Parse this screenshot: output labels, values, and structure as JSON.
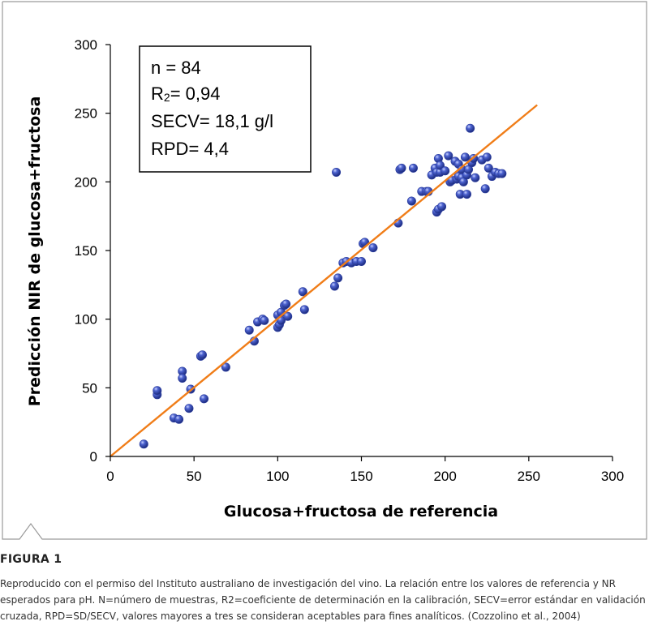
{
  "figure": {
    "label": "FIGURA 1",
    "caption": "Reproducido con el permiso del Instituto australiano de investigación del vino. La relación entre los valores de referencia y NR esperados para pH. N=número de muestras, R2=coeficiente de determinación en la calibración, SECV=error estándar en validación cruzada, RPD=SD/SECV, valores mayores a tres se consideran aceptables para fines analíticos. (Cozzolino et al., 2004)"
  },
  "chart_data": {
    "type": "scatter",
    "xlabel": "Glucosa+fructosa de referencia",
    "ylabel": "Predicción NIR de glucosa+fructosa",
    "xlim": [
      0,
      300
    ],
    "ylim": [
      0,
      300
    ],
    "xticks": [
      "0",
      "50",
      "100",
      "150",
      "200",
      "250",
      "300"
    ],
    "yticks": [
      "0",
      "50",
      "100",
      "150",
      "200",
      "250",
      "300"
    ],
    "grid": false,
    "stats": [
      {
        "prefix": "n = 84",
        "sub": "",
        "suffix": ""
      },
      {
        "prefix": "R",
        "sub": "2",
        "suffix": "= 0,94"
      },
      {
        "prefix": "SECV= 18,1 g/l",
        "sub": "",
        "suffix": ""
      },
      {
        "prefix": "RPD= 4,4",
        "sub": "",
        "suffix": ""
      }
    ],
    "point_color": "#2c3ea0",
    "line_color": "#f07d18",
    "fit_line": {
      "x": [
        0,
        255
      ],
      "y": [
        0,
        256
      ]
    },
    "points": [
      [
        20,
        9
      ],
      [
        28,
        45
      ],
      [
        28,
        48
      ],
      [
        38,
        28
      ],
      [
        41,
        27
      ],
      [
        43,
        62
      ],
      [
        43,
        57
      ],
      [
        47,
        35
      ],
      [
        48,
        49
      ],
      [
        54,
        73
      ],
      [
        55,
        74
      ],
      [
        56,
        42
      ],
      [
        69,
        65
      ],
      [
        83,
        92
      ],
      [
        86,
        84
      ],
      [
        88,
        98
      ],
      [
        91,
        100
      ],
      [
        92,
        99
      ],
      [
        100,
        103
      ],
      [
        100,
        94
      ],
      [
        101,
        96
      ],
      [
        102,
        99
      ],
      [
        102,
        105
      ],
      [
        104,
        110
      ],
      [
        105,
        111
      ],
      [
        106,
        102
      ],
      [
        115,
        120
      ],
      [
        116,
        107
      ],
      [
        134,
        124
      ],
      [
        135,
        207
      ],
      [
        136,
        130
      ],
      [
        139,
        141
      ],
      [
        141,
        142
      ],
      [
        144,
        141
      ],
      [
        147,
        142
      ],
      [
        150,
        142
      ],
      [
        151,
        155
      ],
      [
        152,
        156
      ],
      [
        157,
        152
      ],
      [
        172,
        170
      ],
      [
        173,
        209
      ],
      [
        174,
        210
      ],
      [
        180,
        186
      ],
      [
        181,
        210
      ],
      [
        186,
        193
      ],
      [
        189,
        193
      ],
      [
        190,
        193
      ],
      [
        192,
        205
      ],
      [
        194,
        210
      ],
      [
        195,
        207
      ],
      [
        195,
        178
      ],
      [
        196,
        180
      ],
      [
        196,
        217
      ],
      [
        197,
        207
      ],
      [
        197,
        212
      ],
      [
        198,
        182
      ],
      [
        200,
        208
      ],
      [
        202,
        219
      ],
      [
        203,
        200
      ],
      [
        204,
        201
      ],
      [
        206,
        215
      ],
      [
        207,
        202
      ],
      [
        208,
        204
      ],
      [
        208,
        213
      ],
      [
        209,
        191
      ],
      [
        210,
        203
      ],
      [
        210,
        209
      ],
      [
        211,
        200
      ],
      [
        212,
        218
      ],
      [
        213,
        191
      ],
      [
        213,
        205
      ],
      [
        214,
        209
      ],
      [
        215,
        239
      ],
      [
        216,
        214
      ],
      [
        217,
        217
      ],
      [
        218,
        203
      ],
      [
        222,
        216
      ],
      [
        224,
        195
      ],
      [
        225,
        218
      ],
      [
        226,
        210
      ],
      [
        228,
        204
      ],
      [
        230,
        207
      ],
      [
        232,
        206
      ],
      [
        234,
        206
      ]
    ]
  }
}
